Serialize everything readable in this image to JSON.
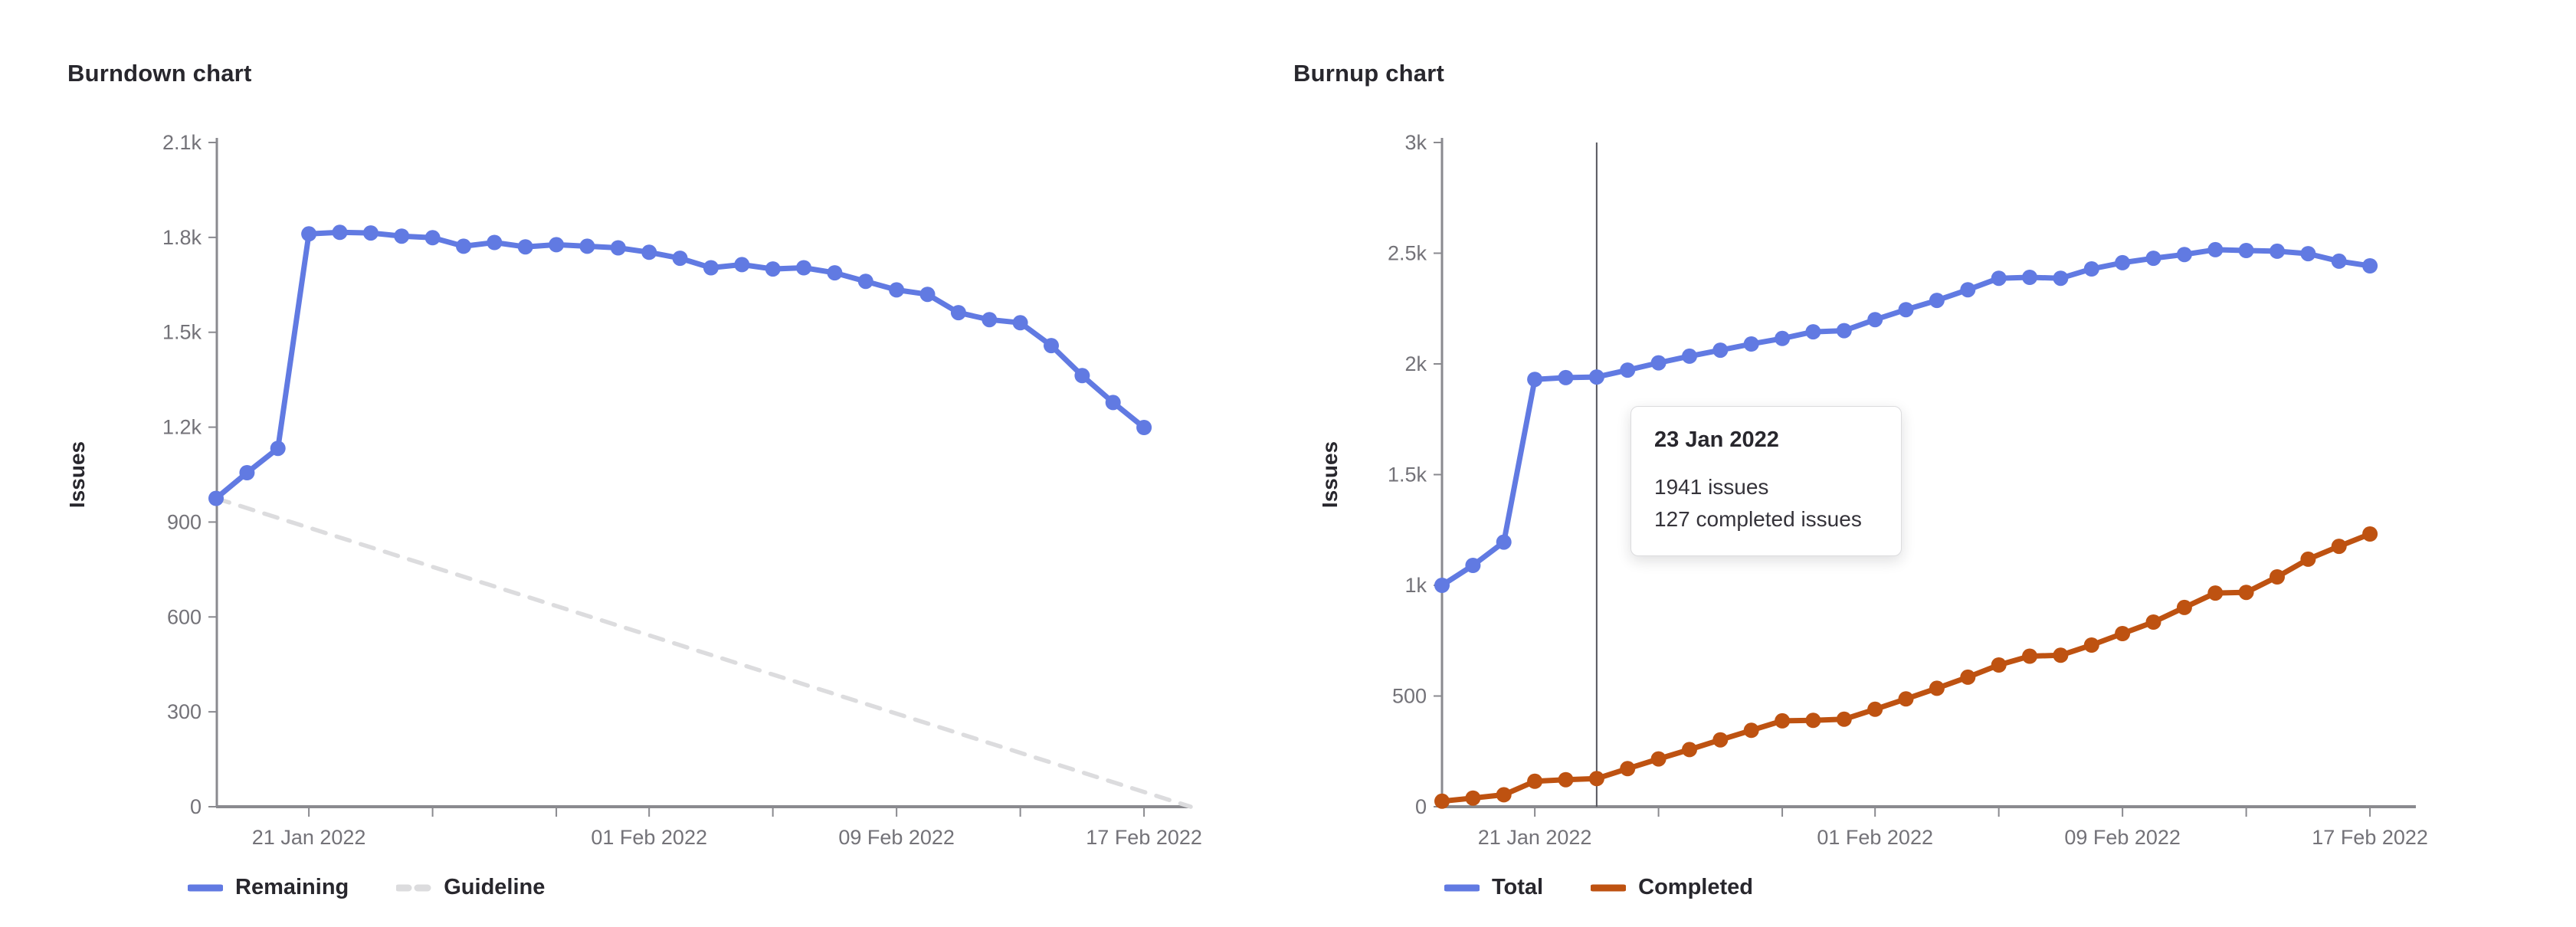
{
  "page": {
    "background": "#ffffff"
  },
  "colors": {
    "axis": "#8a8a8f",
    "tick_text": "#737278",
    "heading_text": "#28272d",
    "blue": "#617ae2",
    "orange": "#be5211",
    "guideline_gray": "#dcdcde",
    "hover_line": "#54545c",
    "tooltip_border": "#dcdcde",
    "tooltip_background": "#ffffff"
  },
  "chart_data": [
    {
      "type": "line",
      "title": "Burndown chart",
      "xlabel": "",
      "ylabel": "Issues",
      "grid": false,
      "legend_position": "bottom",
      "ylim": [
        0,
        2100
      ],
      "yticks": [
        {
          "value": 0,
          "label": "0"
        },
        {
          "value": 300,
          "label": "300"
        },
        {
          "value": 600,
          "label": "600"
        },
        {
          "value": 900,
          "label": "900"
        },
        {
          "value": 1200,
          "label": "1.2k"
        },
        {
          "value": 1500,
          "label": "1.5k"
        },
        {
          "value": 1800,
          "label": "1.8k"
        },
        {
          "value": 2100,
          "label": "2.1k"
        }
      ],
      "x": [
        "18 Jan 2022",
        "19 Jan 2022",
        "20 Jan 2022",
        "21 Jan 2022",
        "22 Jan 2022",
        "23 Jan 2022",
        "24 Jan 2022",
        "25 Jan 2022",
        "26 Jan 2022",
        "27 Jan 2022",
        "28 Jan 2022",
        "29 Jan 2022",
        "30 Jan 2022",
        "31 Jan 2022",
        "01 Feb 2022",
        "02 Feb 2022",
        "03 Feb 2022",
        "04 Feb 2022",
        "05 Feb 2022",
        "06 Feb 2022",
        "07 Feb 2022",
        "08 Feb 2022",
        "09 Feb 2022",
        "10 Feb 2022",
        "11 Feb 2022",
        "12 Feb 2022",
        "13 Feb 2022",
        "14 Feb 2022",
        "15 Feb 2022",
        "16 Feb 2022",
        "17 Feb 2022"
      ],
      "xticks": [
        {
          "day": 3,
          "label": "21 Jan 2022"
        },
        {
          "day": 14,
          "label": "01 Feb 2022"
        },
        {
          "day": 22,
          "label": "09 Feb 2022"
        },
        {
          "day": 30,
          "label": "17 Feb 2022"
        }
      ],
      "minor_tick_days": [
        7,
        11,
        18,
        26
      ],
      "series": [
        {
          "name": "Remaining",
          "color": "#617ae2",
          "style": "solid",
          "values": [
            975,
            1056,
            1133,
            1811,
            1816,
            1814,
            1804,
            1799,
            1772,
            1784,
            1770,
            1777,
            1772,
            1767,
            1753,
            1734,
            1704,
            1714,
            1700,
            1704,
            1688,
            1661,
            1634,
            1620,
            1562,
            1540,
            1530,
            1458,
            1363,
            1278,
            1199
          ]
        }
      ],
      "guideline": {
        "name": "Guideline",
        "color": "#dcdcde",
        "style": "dashed",
        "start_value": 975,
        "end_value": 0
      }
    },
    {
      "type": "line",
      "title": "Burnup chart",
      "xlabel": "",
      "ylabel": "Issues",
      "grid": false,
      "legend_position": "bottom",
      "ylim": [
        0,
        3000
      ],
      "yticks": [
        {
          "value": 0,
          "label": "0"
        },
        {
          "value": 500,
          "label": "500"
        },
        {
          "value": 1000,
          "label": "1k"
        },
        {
          "value": 1500,
          "label": "1.5k"
        },
        {
          "value": 2000,
          "label": "2k"
        },
        {
          "value": 2500,
          "label": "2.5k"
        },
        {
          "value": 3000,
          "label": "3k"
        }
      ],
      "x": [
        "18 Jan 2022",
        "19 Jan 2022",
        "20 Jan 2022",
        "21 Jan 2022",
        "22 Jan 2022",
        "23 Jan 2022",
        "24 Jan 2022",
        "25 Jan 2022",
        "26 Jan 2022",
        "27 Jan 2022",
        "28 Jan 2022",
        "29 Jan 2022",
        "30 Jan 2022",
        "31 Jan 2022",
        "01 Feb 2022",
        "02 Feb 2022",
        "03 Feb 2022",
        "04 Feb 2022",
        "05 Feb 2022",
        "06 Feb 2022",
        "07 Feb 2022",
        "08 Feb 2022",
        "09 Feb 2022",
        "10 Feb 2022",
        "11 Feb 2022",
        "12 Feb 2022",
        "13 Feb 2022",
        "14 Feb 2022",
        "15 Feb 2022",
        "16 Feb 2022",
        "17 Feb 2022"
      ],
      "xticks": [
        {
          "day": 3,
          "label": "21 Jan 2022"
        },
        {
          "day": 14,
          "label": "01 Feb 2022"
        },
        {
          "day": 22,
          "label": "09 Feb 2022"
        },
        {
          "day": 30,
          "label": "17 Feb 2022"
        }
      ],
      "minor_tick_days": [
        7,
        11,
        18,
        26
      ],
      "series": [
        {
          "name": "Total",
          "color": "#617ae2",
          "style": "solid",
          "values": [
            1000,
            1090,
            1195,
            1930,
            1938,
            1941,
            1972,
            2005,
            2035,
            2062,
            2090,
            2115,
            2145,
            2150,
            2200,
            2245,
            2287,
            2335,
            2387,
            2391,
            2387,
            2429,
            2457,
            2477,
            2494,
            2516,
            2512,
            2509,
            2498,
            2464,
            2443
          ]
        },
        {
          "name": "Completed",
          "color": "#be5211",
          "style": "solid",
          "values": [
            25,
            39,
            54,
            115,
            122,
            127,
            172,
            216,
            258,
            302,
            345,
            388,
            390,
            395,
            440,
            487,
            535,
            585,
            640,
            680,
            684,
            730,
            782,
            834,
            900,
            965,
            968,
            1038,
            1118,
            1176,
            1232
          ]
        }
      ],
      "tooltip": {
        "title": "23 Jan 2022",
        "lines": [
          "1941 issues",
          "127 completed issues"
        ],
        "anchor_date": "23 Jan 2022",
        "day_index": 5
      }
    }
  ]
}
